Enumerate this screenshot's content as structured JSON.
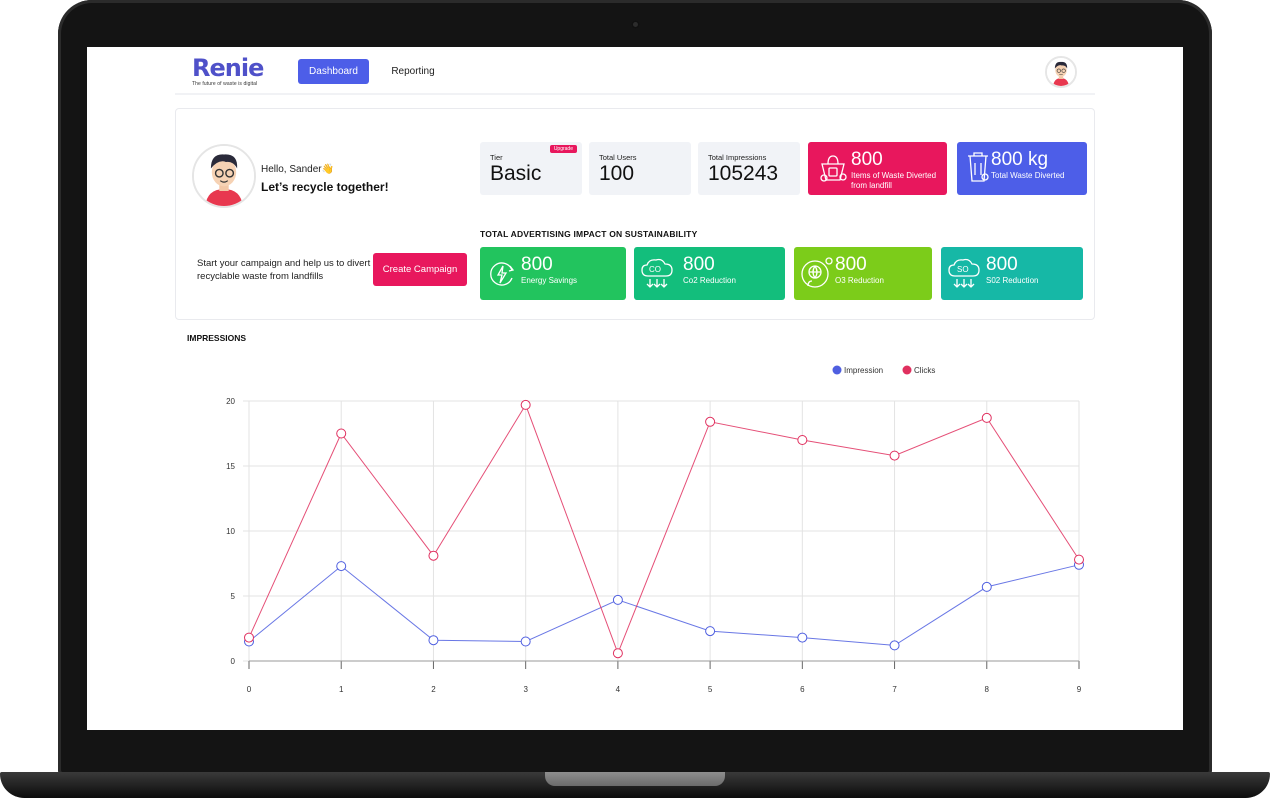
{
  "app": {
    "logo": "Renie",
    "logo_tagline": "The future of waste is digital"
  },
  "nav": {
    "dashboard": "Dashboard",
    "reporting": "Reporting"
  },
  "greeting": {
    "hello": "Hello, Sander👋",
    "tagline": "Let’s recycle together!"
  },
  "campaign": {
    "text": "Start your campaign and help us to divert recyclable waste from landfills",
    "button": "Create Campaign"
  },
  "stats": {
    "tier_label": "Tier",
    "tier_value": "Basic",
    "upgrade": "Upgrade",
    "users_label": "Total Users",
    "users_value": "100",
    "impressions_label": "Total Impressions",
    "impressions_value": "105243"
  },
  "waste_items": {
    "value": "800",
    "label": "Items of Waste Diverted from landfill",
    "color": "#e8175d"
  },
  "waste_kg": {
    "value": "800 kg",
    "label": "Total Waste Diverted",
    "color": "#4d5ee8"
  },
  "impact": {
    "title": "TOTAL ADVERTISING IMPACT ON SUSTAINABILITY",
    "cards": [
      {
        "value": "800",
        "label": "Energy Savings",
        "icon": "energy-icon",
        "color": "#22c45e"
      },
      {
        "value": "800",
        "label": "Co2 Reduction",
        "icon": "co2-icon",
        "color": "#13be7c"
      },
      {
        "value": "800",
        "label": "O3 Reduction",
        "icon": "o3-icon",
        "color": "#7ccc1a"
      },
      {
        "value": "800",
        "label": "S02 Reduction",
        "icon": "so2-icon",
        "color": "#16b8a6"
      }
    ]
  },
  "impressions_section": {
    "title": "IMPRESSIONS"
  },
  "chart_data": {
    "type": "line",
    "x": [
      0,
      1,
      2,
      3,
      4,
      5,
      6,
      7,
      8,
      9
    ],
    "yticks": [
      0,
      5,
      10,
      15,
      20
    ],
    "ylim": [
      0,
      20
    ],
    "grid": true,
    "legend": "top-right",
    "series": [
      {
        "name": "Impression",
        "color": "#4f5fe0",
        "values": [
          1.5,
          7.3,
          1.6,
          1.5,
          4.7,
          2.3,
          1.8,
          1.2,
          5.7,
          7.4
        ]
      },
      {
        "name": "Clicks",
        "color": "#e0305f",
        "values": [
          1.8,
          17.5,
          8.1,
          19.7,
          0.6,
          18.4,
          17.0,
          15.8,
          18.7,
          7.8
        ]
      }
    ]
  }
}
